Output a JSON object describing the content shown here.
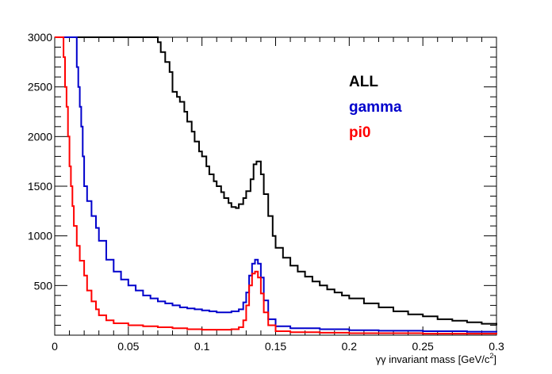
{
  "chart_data": {
    "type": "line",
    "style": "step-histogram",
    "xlabel_prefix": "γγ invariant mass [GeV/c",
    "xlabel_sup": "2",
    "xlabel_suffix": "]",
    "ylabel": "",
    "xlim": [
      0,
      0.3
    ],
    "ylim": [
      0,
      3000
    ],
    "grid": false,
    "legend_position": "top-right",
    "x_ticks": [
      {
        "value": 0,
        "label": "0"
      },
      {
        "value": 0.05,
        "label": "0.05"
      },
      {
        "value": 0.1,
        "label": "0.1"
      },
      {
        "value": 0.15,
        "label": "0.15"
      },
      {
        "value": 0.2,
        "label": "0.2"
      },
      {
        "value": 0.25,
        "label": "0.25"
      },
      {
        "value": 0.3,
        "label": "0.3"
      }
    ],
    "y_ticks": [
      {
        "value": 500,
        "label": "500"
      },
      {
        "value": 1000,
        "label": "1000"
      },
      {
        "value": 1500,
        "label": "1500"
      },
      {
        "value": 2000,
        "label": "2000"
      },
      {
        "value": 2500,
        "label": "2500"
      },
      {
        "value": 3000,
        "label": "3000"
      }
    ],
    "series": [
      {
        "name": "ALL",
        "color": "#000000",
        "x": [
          0.0,
          0.005,
          0.01,
          0.015,
          0.02,
          0.025,
          0.03,
          0.035,
          0.04,
          0.045,
          0.05,
          0.055,
          0.06,
          0.065,
          0.068,
          0.07,
          0.072,
          0.075,
          0.078,
          0.08,
          0.083,
          0.085,
          0.088,
          0.09,
          0.093,
          0.095,
          0.098,
          0.1,
          0.103,
          0.105,
          0.108,
          0.11,
          0.113,
          0.115,
          0.118,
          0.12,
          0.123,
          0.125,
          0.128,
          0.13,
          0.133,
          0.135,
          0.137,
          0.14,
          0.142,
          0.145,
          0.148,
          0.15,
          0.155,
          0.16,
          0.165,
          0.17,
          0.175,
          0.18,
          0.185,
          0.19,
          0.195,
          0.2,
          0.21,
          0.22,
          0.23,
          0.24,
          0.25,
          0.26,
          0.27,
          0.28,
          0.29,
          0.3
        ],
        "y": [
          3000,
          3000,
          3000,
          3000,
          3000,
          3000,
          3000,
          3000,
          3000,
          3000,
          3000,
          3000,
          3000,
          3000,
          3000,
          2950,
          2850,
          2750,
          2650,
          2450,
          2400,
          2350,
          2250,
          2150,
          2050,
          1950,
          1850,
          1800,
          1700,
          1620,
          1550,
          1500,
          1440,
          1380,
          1330,
          1290,
          1280,
          1320,
          1380,
          1450,
          1570,
          1720,
          1750,
          1620,
          1420,
          1200,
          1000,
          880,
          780,
          700,
          640,
          590,
          540,
          500,
          460,
          430,
          400,
          370,
          320,
          280,
          240,
          210,
          190,
          160,
          145,
          130,
          115,
          100
        ]
      },
      {
        "name": "gamma",
        "color": "#0000cc",
        "x": [
          0.0,
          0.012,
          0.014,
          0.015,
          0.016,
          0.017,
          0.018,
          0.019,
          0.02,
          0.022,
          0.025,
          0.028,
          0.03,
          0.035,
          0.04,
          0.045,
          0.05,
          0.055,
          0.06,
          0.065,
          0.07,
          0.075,
          0.08,
          0.085,
          0.09,
          0.095,
          0.1,
          0.105,
          0.11,
          0.115,
          0.12,
          0.125,
          0.128,
          0.13,
          0.132,
          0.134,
          0.136,
          0.138,
          0.14,
          0.142,
          0.145,
          0.15,
          0.16,
          0.18,
          0.2,
          0.22,
          0.25,
          0.28,
          0.3
        ],
        "y": [
          3000,
          3000,
          3000,
          2700,
          2500,
          2300,
          2100,
          1800,
          1500,
          1350,
          1200,
          1080,
          950,
          760,
          640,
          560,
          500,
          450,
          400,
          370,
          340,
          320,
          300,
          280,
          270,
          260,
          250,
          240,
          230,
          230,
          240,
          260,
          330,
          430,
          600,
          720,
          760,
          720,
          580,
          350,
          160,
          90,
          70,
          60,
          50,
          45,
          40,
          35,
          30
        ]
      },
      {
        "name": "pi0",
        "color": "#ff0000",
        "x": [
          0.0,
          0.004,
          0.006,
          0.007,
          0.008,
          0.009,
          0.01,
          0.011,
          0.012,
          0.013,
          0.015,
          0.017,
          0.02,
          0.022,
          0.025,
          0.028,
          0.03,
          0.035,
          0.04,
          0.05,
          0.06,
          0.07,
          0.08,
          0.09,
          0.1,
          0.11,
          0.12,
          0.125,
          0.128,
          0.13,
          0.132,
          0.134,
          0.136,
          0.138,
          0.14,
          0.142,
          0.145,
          0.15,
          0.16,
          0.18,
          0.2,
          0.25,
          0.3
        ],
        "y": [
          3000,
          3000,
          2800,
          2500,
          2300,
          2000,
          1700,
          1500,
          1300,
          1100,
          900,
          750,
          600,
          450,
          340,
          260,
          200,
          150,
          120,
          100,
          90,
          80,
          70,
          60,
          55,
          55,
          60,
          80,
          150,
          300,
          500,
          620,
          640,
          580,
          420,
          230,
          100,
          40,
          30,
          25,
          20,
          15,
          10
        ]
      }
    ]
  }
}
